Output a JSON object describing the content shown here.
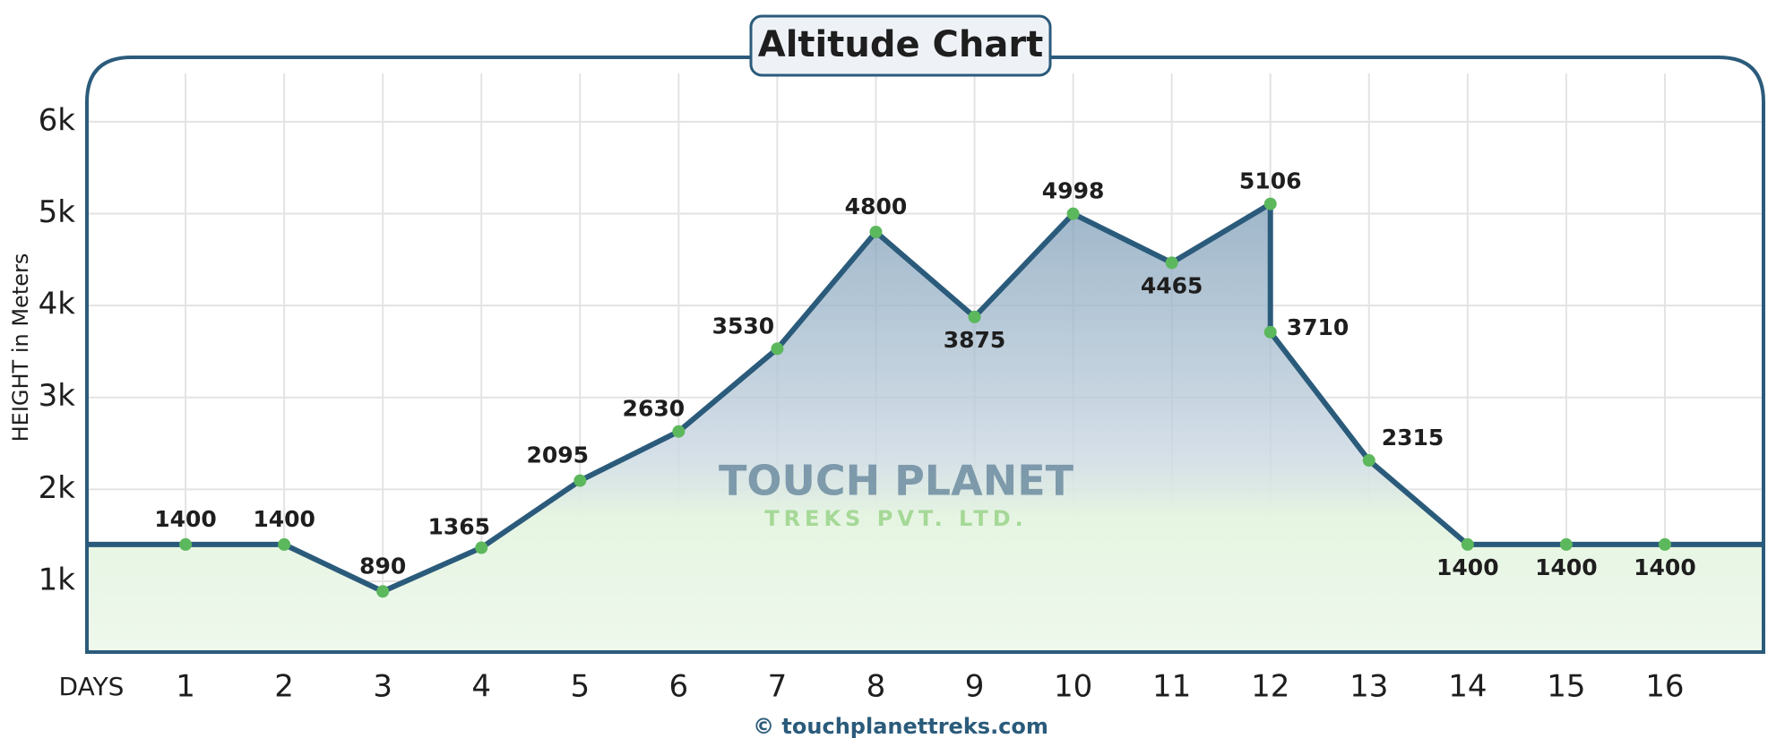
{
  "chart_data": {
    "type": "line",
    "title": "Altitude Chart",
    "x_label": "DAYS",
    "y_label": "HEIGHT in Meters",
    "footer": "© touchplanettreks.com",
    "watermark": [
      "TOUCH PLANET",
      "TREKS PVT. LTD."
    ],
    "x": [
      1,
      2,
      3,
      4,
      5,
      6,
      7,
      8,
      9,
      10,
      11,
      12,
      12,
      13,
      14,
      15,
      16
    ],
    "values": [
      1400,
      1400,
      890,
      1365,
      2095,
      2630,
      3530,
      4800,
      3875,
      4998,
      4465,
      5106,
      3710,
      2315,
      1400,
      1400,
      1400
    ],
    "color": "#2b5b7b",
    "marker_color": "#5cb85c",
    "xlim": [
      0,
      17
    ],
    "xticks": [
      1,
      2,
      3,
      4,
      5,
      6,
      7,
      8,
      9,
      10,
      11,
      12,
      13,
      14,
      15,
      16
    ],
    "ylim": [
      230,
      6700
    ],
    "yticks": [
      {
        "value": 1000,
        "label": "1k"
      },
      {
        "value": 2000,
        "label": "2k"
      },
      {
        "value": 3000,
        "label": "3k"
      },
      {
        "value": 4000,
        "label": "4k"
      },
      {
        "value": 5000,
        "label": "5k"
      },
      {
        "value": 6000,
        "label": "6k"
      }
    ],
    "grid": true
  }
}
